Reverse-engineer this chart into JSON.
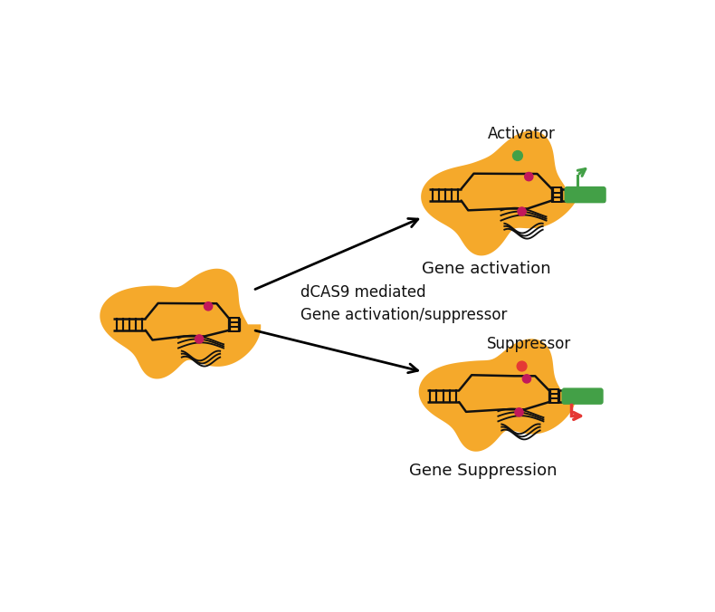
{
  "bg_color": "#ffffff",
  "blob_color": "#F5A624",
  "line_color": "#111111",
  "magenta_dot": "#C2185B",
  "green_dot": "#43A047",
  "red_dot": "#E53935",
  "gene_green": "#43A047",
  "suppress_red": "#E53935",
  "text_color": "#111111",
  "label_activation": "Gene activation",
  "label_suppression": "Gene Suppression",
  "label_activator": "Activator",
  "label_suppressor": "Suppressor",
  "label_center_line1": "dCAS9 mediated",
  "label_center_line2": "Gene activation/suppressor",
  "fontsize_label": 13,
  "fontsize_annot": 12,
  "lw": 1.8,
  "dot_r": 6,
  "extra_dot_r": 7
}
